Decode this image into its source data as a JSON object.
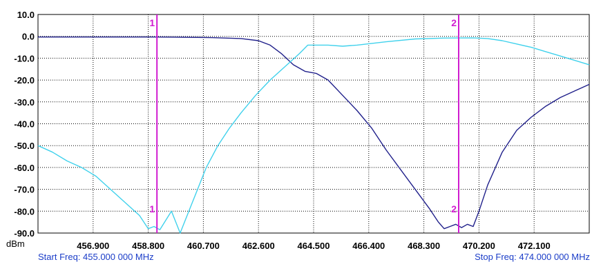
{
  "chart_data": {
    "type": "line",
    "y_unit": "dBm",
    "ylim": [
      -90.0,
      10.0
    ],
    "xlim": [
      455.0,
      474.0
    ],
    "y_ticks": [
      "10.0",
      "0.0",
      "-10.0",
      "-20.0",
      "-30.0",
      "-40.0",
      "-50.0",
      "-60.0",
      "-70.0",
      "-80.0",
      "-90.0"
    ],
    "x_ticks": [
      "456.900",
      "458.800",
      "460.700",
      "462.600",
      "464.500",
      "466.400",
      "468.300",
      "470.200",
      "472.100"
    ],
    "grid": true,
    "start_label": "Start Freq: 455.000 000 MHz",
    "stop_label": "Stop Freq: 474.000 000 MHz",
    "colors": {
      "series_1": "#1f1f8a",
      "series_2": "#3fd1ec",
      "marker": "#d01bd0",
      "footer_text": "#1a3cc8"
    },
    "markers": [
      {
        "label": "1",
        "x": 459.1
      },
      {
        "label": "2",
        "x": 469.5
      }
    ],
    "series": [
      {
        "color": "#1f1f8a",
        "x": [
          455.0,
          456.0,
          457.0,
          458.0,
          459.0,
          460.0,
          461.0,
          462.0,
          462.6,
          463.0,
          463.4,
          463.8,
          464.2,
          464.6,
          465.0,
          465.5,
          466.0,
          466.5,
          467.0,
          467.5,
          468.0,
          468.5,
          468.8,
          469.0,
          469.2,
          469.4,
          469.6,
          469.8,
          470.0,
          470.2,
          470.5,
          471.0,
          471.5,
          472.0,
          472.5,
          473.0,
          473.5,
          474.0
        ],
        "values": [
          -0.3,
          -0.3,
          -0.3,
          -0.3,
          -0.3,
          -0.4,
          -0.6,
          -1.0,
          -2.0,
          -4.0,
          -8.0,
          -13.0,
          -16.0,
          -17.0,
          -20.0,
          -27.0,
          -34.0,
          -42.0,
          -52.0,
          -61.0,
          -70.0,
          -79.0,
          -85.0,
          -88.0,
          -87.0,
          -86.0,
          -87.5,
          -86.0,
          -87.0,
          -80.0,
          -68.0,
          -53.0,
          -43.0,
          -37.0,
          -32.0,
          -28.0,
          -25.0,
          -22.0
        ]
      },
      {
        "color": "#3fd1ec",
        "x": [
          455.0,
          455.5,
          456.0,
          456.5,
          457.0,
          457.5,
          458.0,
          458.5,
          458.8,
          459.0,
          459.2,
          459.6,
          459.9,
          460.2,
          460.5,
          460.8,
          461.2,
          461.6,
          462.0,
          462.5,
          463.0,
          463.5,
          464.0,
          464.3,
          464.6,
          465.0,
          465.5,
          466.0,
          467.0,
          468.0,
          469.0,
          470.0,
          470.5,
          471.0,
          471.5,
          472.0,
          472.5,
          473.0,
          473.5,
          474.0
        ],
        "values": [
          -50.0,
          -53.0,
          -57.0,
          -60.0,
          -64.0,
          -70.0,
          -76.0,
          -82.0,
          -88.0,
          -87.0,
          -88.5,
          -80.0,
          -90.0,
          -80.0,
          -70.0,
          -60.0,
          -50.0,
          -42.0,
          -35.0,
          -27.0,
          -20.0,
          -14.0,
          -8.0,
          -4.0,
          -4.0,
          -4.0,
          -4.5,
          -4.0,
          -2.5,
          -1.2,
          -0.8,
          -0.7,
          -1.0,
          -2.0,
          -3.5,
          -5.0,
          -7.0,
          -9.0,
          -11.0,
          -13.0
        ]
      }
    ]
  }
}
